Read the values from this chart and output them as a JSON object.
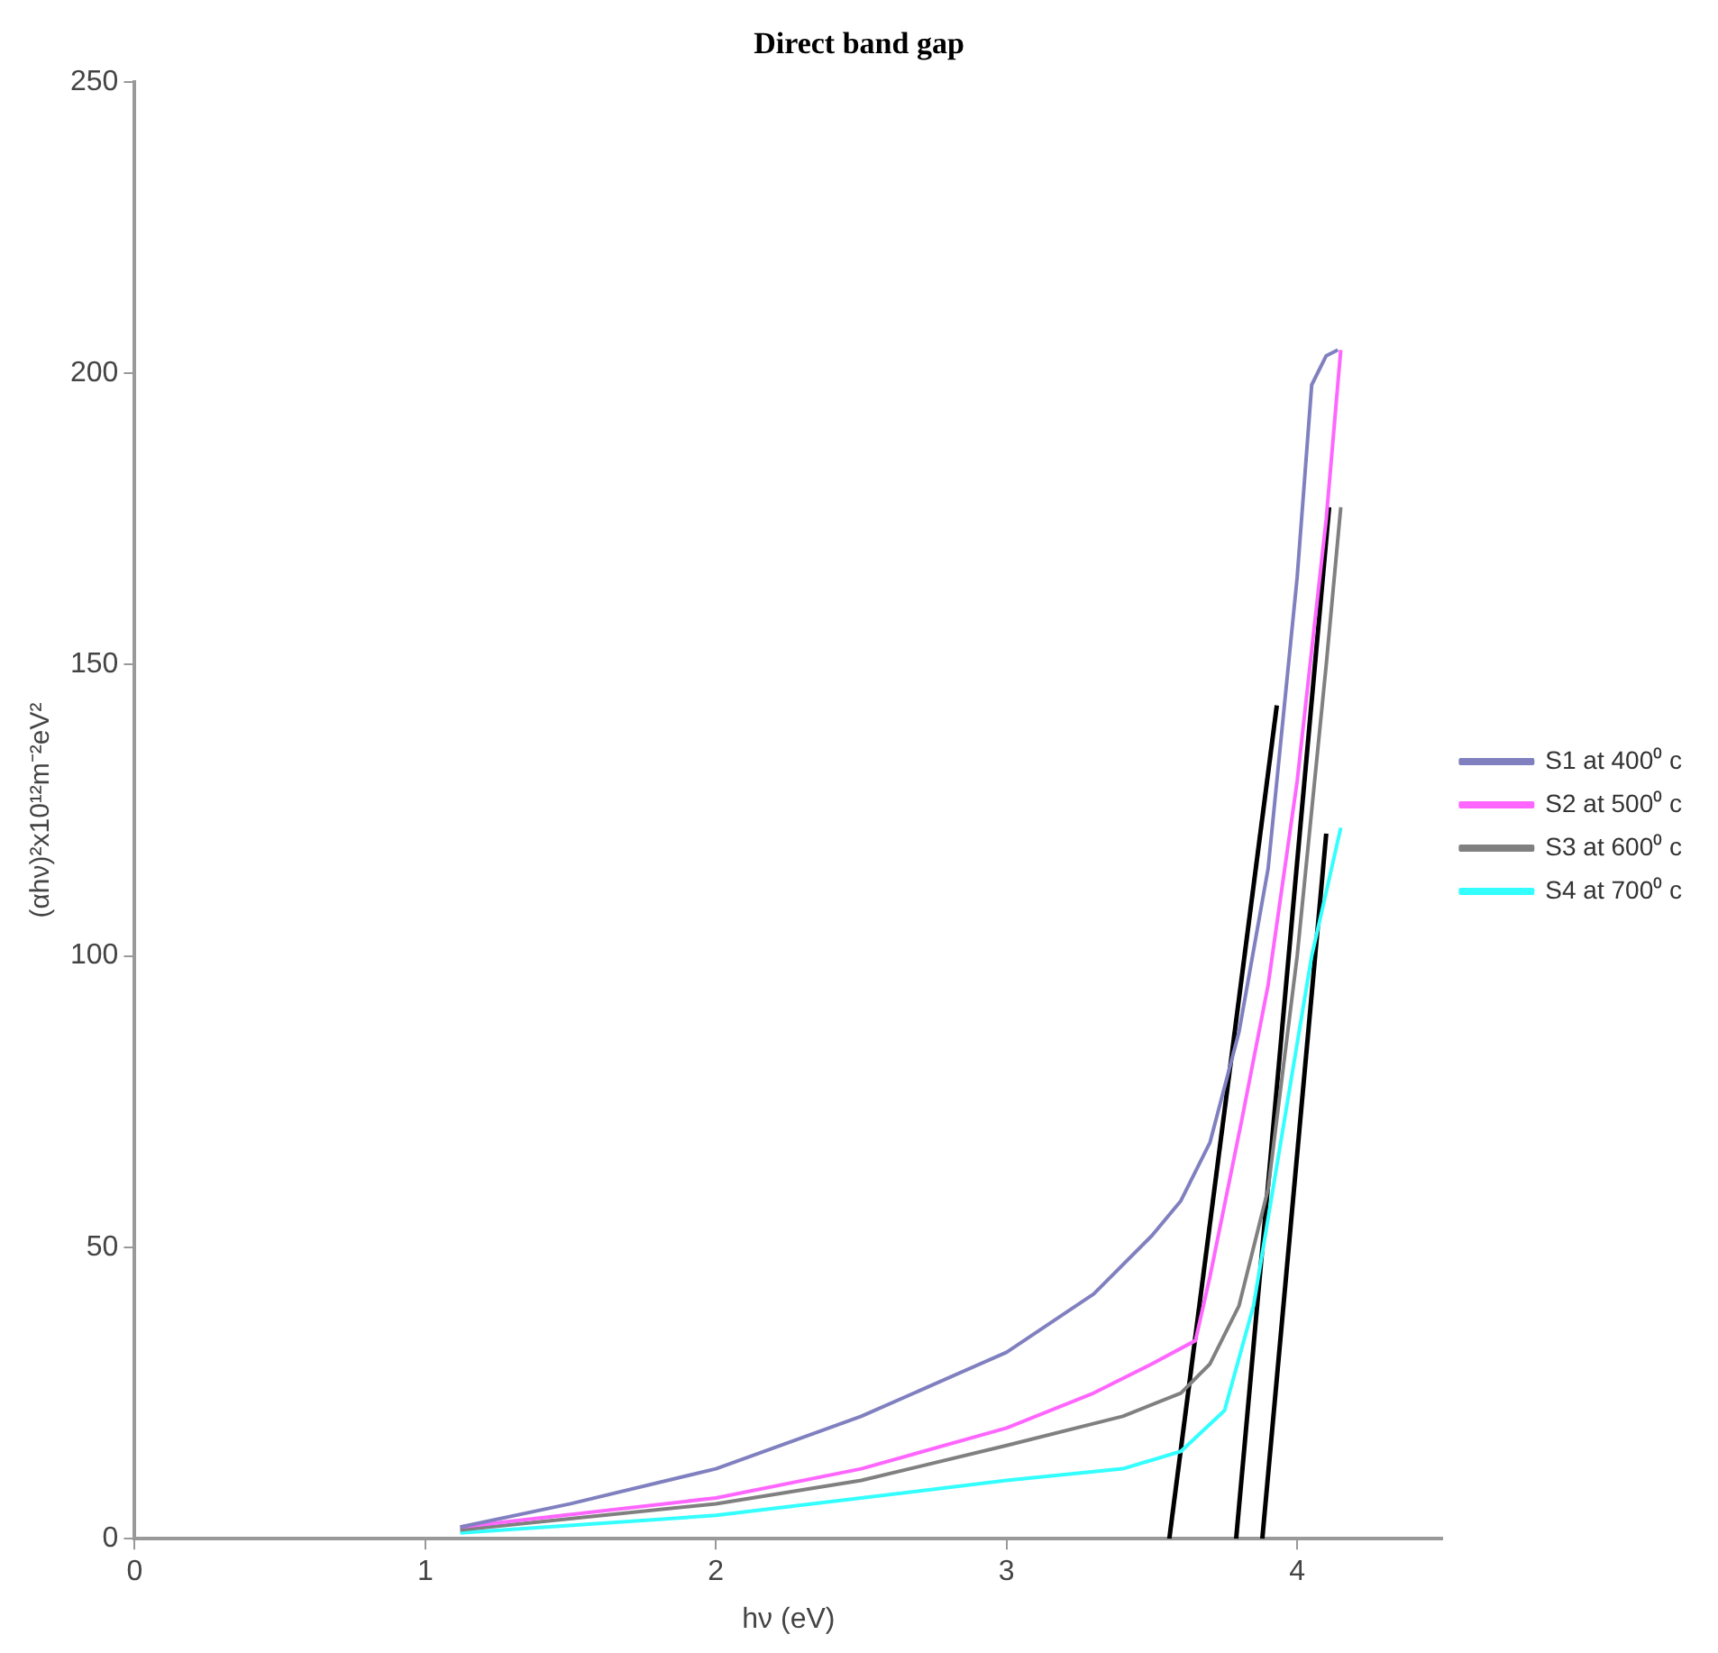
{
  "chart_data": {
    "type": "line",
    "title": "Direct band gap",
    "xlabel": "hν (eV)",
    "ylabel": "(αhν)²x10¹²m⁻²eV²",
    "xlim": [
      0,
      4.5
    ],
    "xticks": [
      0,
      1,
      2,
      3,
      4
    ],
    "ylim": [
      0,
      250
    ],
    "yticks": [
      0,
      50,
      100,
      150,
      200,
      250
    ],
    "grid": false,
    "legend": "right",
    "marker": "none",
    "line_style": "solid",
    "series": [
      {
        "name": "S1 at 400⁰ c",
        "color": "#8080c0",
        "x": [
          1.12,
          1.5,
          2,
          2.5,
          3,
          3.3,
          3.5,
          3.6,
          3.7,
          3.8,
          3.9,
          4.0,
          4.05,
          4.1,
          4.14
        ],
        "values": [
          2,
          6,
          12,
          21,
          32,
          42,
          52,
          58,
          68,
          87,
          115,
          165,
          198,
          203,
          204
        ]
      },
      {
        "name": "S2 at 500⁰ c",
        "color": "#ff66ff",
        "x": [
          1.12,
          2,
          2.5,
          3,
          3.3,
          3.5,
          3.65,
          3.7,
          3.81,
          3.9,
          4.0,
          4.1,
          4.15
        ],
        "values": [
          2,
          7,
          12,
          19,
          25,
          30,
          34,
          45,
          72,
          95,
          130,
          175,
          204
        ]
      },
      {
        "name": "S3 at 600⁰ c",
        "color": "#808080",
        "x": [
          1.12,
          2,
          2.5,
          3,
          3.4,
          3.6,
          3.7,
          3.8,
          3.9,
          4.0,
          4.1,
          4.15
        ],
        "values": [
          1.5,
          6,
          10,
          16,
          21,
          25,
          30,
          40,
          60,
          100,
          150,
          177
        ]
      },
      {
        "name": "S4 at 700⁰ c",
        "color": "#33ffff",
        "x": [
          1.12,
          2,
          2.5,
          3,
          3.4,
          3.6,
          3.75,
          3.85,
          3.95,
          4.05,
          4.15
        ],
        "values": [
          1,
          4,
          7,
          10,
          12,
          15,
          22,
          40,
          70,
          100,
          122
        ]
      },
      {
        "color": "#000000",
        "x": [
          3.56,
          3.93
        ],
        "values": [
          0,
          143
        ]
      },
      {
        "color": "#000000",
        "x": [
          3.79,
          4.11
        ],
        "values": [
          0,
          177
        ]
      },
      {
        "color": "#000000",
        "x": [
          3.88,
          4.1
        ],
        "values": [
          0,
          121
        ]
      }
    ]
  }
}
